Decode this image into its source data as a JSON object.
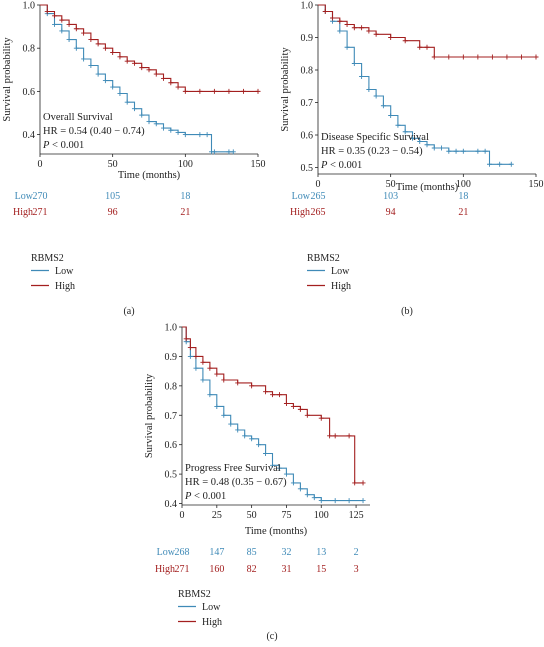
{
  "colors": {
    "low": "#3f8ab7",
    "high": "#a31f1f",
    "axis": "#222222"
  },
  "legend_title": "RBMS2",
  "group_labels": [
    "Low",
    "High"
  ],
  "time_label": "Time (months)",
  "survival_label": "Survival probability",
  "chart_data": [
    {
      "type": "line",
      "caption": "(a)",
      "endpoint": "Overall Survival",
      "hr_text": "HR = 0.54 (0.40 − 0.74)",
      "p_italic": "P",
      "p_rest": " < 0.001",
      "xlim": [
        0,
        150
      ],
      "ylim": [
        0.31,
        1.0
      ],
      "xticks": [
        0,
        50,
        100,
        150
      ],
      "yticks": [
        0.4,
        0.6,
        0.8,
        1.0
      ],
      "xtick_labels": [
        "0",
        "50",
        "100",
        "150"
      ],
      "ytick_labels": [
        "0.4",
        "0.6",
        "0.8",
        "1.0"
      ],
      "series": [
        {
          "name": "Low",
          "key": "low",
          "x": [
            0,
            5,
            10,
            15,
            20,
            25,
            30,
            35,
            40,
            45,
            50,
            55,
            60,
            65,
            70,
            75,
            80,
            85,
            90,
            95,
            100,
            110,
            115,
            118,
            120,
            130,
            133
          ],
          "y": [
            1.0,
            0.96,
            0.91,
            0.88,
            0.84,
            0.8,
            0.75,
            0.72,
            0.68,
            0.65,
            0.62,
            0.59,
            0.55,
            0.52,
            0.49,
            0.46,
            0.45,
            0.43,
            0.42,
            0.41,
            0.4,
            0.4,
            0.4,
            0.32,
            0.32,
            0.32,
            0.32
          ]
        },
        {
          "name": "High",
          "key": "high",
          "x": [
            0,
            5,
            10,
            15,
            20,
            25,
            30,
            35,
            40,
            45,
            50,
            55,
            60,
            65,
            70,
            75,
            80,
            85,
            90,
            95,
            100,
            110,
            120,
            130,
            140,
            150
          ],
          "y": [
            1.0,
            0.97,
            0.95,
            0.93,
            0.91,
            0.89,
            0.87,
            0.84,
            0.82,
            0.8,
            0.78,
            0.76,
            0.74,
            0.73,
            0.71,
            0.7,
            0.68,
            0.66,
            0.64,
            0.62,
            0.6,
            0.6,
            0.6,
            0.6,
            0.6,
            0.6
          ]
        }
      ],
      "risk_table": [
        {
          "group": "Low",
          "key": "low",
          "values": [
            "270",
            "105",
            "18"
          ]
        },
        {
          "group": "High",
          "key": "high",
          "values": [
            "271",
            "96",
            "21"
          ]
        }
      ],
      "risk_times": [
        0,
        50,
        100
      ]
    },
    {
      "type": "line",
      "caption": "(b)",
      "endpoint": "Disease Specific Survival",
      "hr_text": "HR = 0.35 (0.23 − 0.54)",
      "p_italic": "P",
      "p_rest": " < 0.001",
      "xlim": [
        0,
        150
      ],
      "ylim": [
        0.48,
        1.0
      ],
      "xticks": [
        0,
        50,
        100,
        150
      ],
      "yticks": [
        0.5,
        0.6,
        0.7,
        0.8,
        0.9,
        1.0
      ],
      "xtick_labels": [
        "0",
        "50",
        "100",
        "150"
      ],
      "ytick_labels": [
        "0.5",
        "0.6",
        "0.7",
        "0.8",
        "0.9",
        "1.0"
      ],
      "series": [
        {
          "name": "Low",
          "key": "low",
          "x": [
            0,
            5,
            10,
            15,
            20,
            25,
            30,
            35,
            40,
            45,
            50,
            55,
            60,
            65,
            70,
            75,
            80,
            85,
            90,
            95,
            100,
            110,
            115,
            118,
            125,
            133
          ],
          "y": [
            1.0,
            0.98,
            0.95,
            0.92,
            0.87,
            0.82,
            0.78,
            0.74,
            0.72,
            0.69,
            0.66,
            0.63,
            0.61,
            0.59,
            0.58,
            0.57,
            0.56,
            0.56,
            0.55,
            0.55,
            0.55,
            0.55,
            0.55,
            0.51,
            0.51,
            0.51
          ]
        },
        {
          "name": "High",
          "key": "high",
          "x": [
            0,
            5,
            10,
            15,
            20,
            25,
            30,
            35,
            40,
            50,
            60,
            70,
            75,
            80,
            90,
            100,
            110,
            120,
            130,
            140,
            150
          ],
          "y": [
            1.0,
            0.98,
            0.96,
            0.95,
            0.94,
            0.93,
            0.93,
            0.92,
            0.91,
            0.9,
            0.89,
            0.87,
            0.87,
            0.84,
            0.84,
            0.84,
            0.84,
            0.84,
            0.84,
            0.84,
            0.84
          ]
        }
      ],
      "risk_table": [
        {
          "group": "Low",
          "key": "low",
          "values": [
            "265",
            "103",
            "18"
          ]
        },
        {
          "group": "High",
          "key": "high",
          "values": [
            "265",
            "94",
            "21"
          ]
        }
      ],
      "risk_times": [
        0,
        50,
        100
      ]
    },
    {
      "type": "line",
      "caption": "(c)",
      "endpoint": "Progress Free Survival",
      "hr_text": "HR = 0.48 (0.35 − 0.67)",
      "p_italic": "P",
      "p_rest": " < 0.001",
      "xlim": [
        0,
        135
      ],
      "ylim": [
        0.395,
        1.0
      ],
      "xticks": [
        0,
        25,
        50,
        75,
        100,
        125
      ],
      "yticks": [
        0.4,
        0.5,
        0.6,
        0.7,
        0.8,
        0.9,
        1.0
      ],
      "xtick_labels": [
        "0",
        "25",
        "50",
        "75",
        "100",
        "125"
      ],
      "ytick_labels": [
        "0.4",
        "0.5",
        "0.6",
        "0.7",
        "0.8",
        "0.9",
        "1.0"
      ],
      "series": [
        {
          "name": "Low",
          "key": "low",
          "x": [
            0,
            3,
            6,
            10,
            15,
            20,
            25,
            30,
            35,
            40,
            45,
            50,
            55,
            60,
            65,
            70,
            75,
            80,
            85,
            90,
            95,
            100,
            110,
            120,
            130
          ],
          "y": [
            1.0,
            0.95,
            0.9,
            0.86,
            0.82,
            0.77,
            0.73,
            0.7,
            0.67,
            0.65,
            0.63,
            0.62,
            0.6,
            0.57,
            0.53,
            0.52,
            0.5,
            0.47,
            0.45,
            0.43,
            0.42,
            0.41,
            0.41,
            0.41,
            0.41
          ]
        },
        {
          "name": "High",
          "key": "high",
          "x": [
            0,
            3,
            6,
            10,
            15,
            20,
            25,
            30,
            40,
            50,
            60,
            65,
            70,
            75,
            80,
            85,
            90,
            100,
            106,
            110,
            120,
            124,
            130
          ],
          "y": [
            1.0,
            0.96,
            0.93,
            0.9,
            0.88,
            0.86,
            0.84,
            0.82,
            0.81,
            0.8,
            0.78,
            0.77,
            0.77,
            0.74,
            0.73,
            0.72,
            0.7,
            0.69,
            0.63,
            0.63,
            0.63,
            0.47,
            0.47
          ]
        }
      ],
      "risk_table": [
        {
          "group": "Low",
          "key": "low",
          "values": [
            "268",
            "147",
            "85",
            "32",
            "13",
            "2"
          ]
        },
        {
          "group": "High",
          "key": "high",
          "values": [
            "271",
            "160",
            "82",
            "31",
            "15",
            "3"
          ]
        }
      ],
      "risk_times": [
        0,
        25,
        50,
        75,
        100,
        125
      ]
    }
  ]
}
